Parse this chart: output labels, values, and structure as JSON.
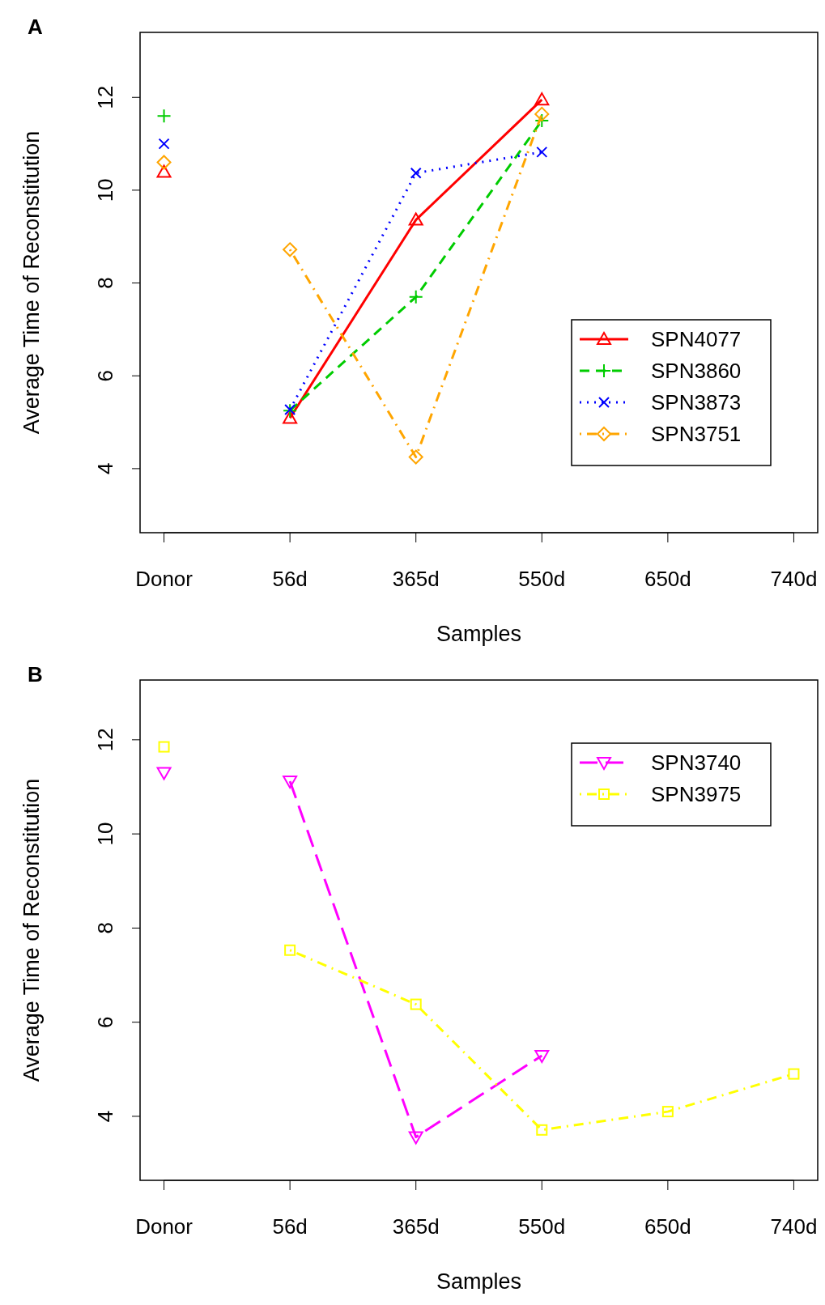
{
  "chart_data": [
    {
      "type": "line",
      "xlabel": "Samples",
      "ylabel": "Average Time of Reconstitution",
      "annotations": [
        "A"
      ],
      "categories": [
        "Donor",
        "56d",
        "365d",
        "550d",
        "650d",
        "740d"
      ],
      "ylim": [
        2.62,
        13.4
      ],
      "yticks": [
        4,
        6,
        8,
        10,
        12
      ],
      "grid": false,
      "legend": "right",
      "series": [
        {
          "name": "SPN4077",
          "color": "#ff0000",
          "marker": "triangle",
          "line_style": "solid",
          "values": [
            null,
            5.09,
            9.36,
            11.95,
            null,
            null
          ]
        },
        {
          "name": "SPN3860",
          "color": "#00cc00",
          "marker": "plus",
          "line_style": "dashed",
          "values": [
            null,
            5.25,
            7.7,
            11.5,
            null,
            null
          ]
        },
        {
          "name": "SPN3873",
          "color": "#0000ff",
          "marker": "x",
          "line_style": "dotted",
          "values": [
            null,
            5.27,
            10.37,
            10.82,
            null,
            null
          ]
        },
        {
          "name": "SPN3751",
          "color": "#ffa500",
          "marker": "diamond",
          "line_style": "dashdot",
          "values": [
            null,
            8.72,
            4.25,
            11.64,
            null,
            null
          ]
        },
        {
          "type": "scatter",
          "color": "#ff0000",
          "marker": "triangle",
          "values": [
            10.39,
            null,
            null,
            null,
            null,
            null
          ]
        },
        {
          "type": "scatter",
          "color": "#00cc00",
          "marker": "plus",
          "values": [
            11.6,
            null,
            null,
            null,
            null,
            null
          ]
        },
        {
          "type": "scatter",
          "color": "#0000ff",
          "marker": "x",
          "values": [
            11.0,
            null,
            null,
            null,
            null,
            null
          ]
        },
        {
          "type": "scatter",
          "color": "#ffa500",
          "marker": "diamond",
          "values": [
            10.6,
            null,
            null,
            null,
            null,
            null
          ]
        }
      ]
    },
    {
      "type": "line",
      "xlabel": "Samples",
      "ylabel": "Average Time of Reconstitution",
      "annotations": [
        "B"
      ],
      "categories": [
        "Donor",
        "56d",
        "365d",
        "550d",
        "650d",
        "740d"
      ],
      "ylim": [
        2.64,
        13.27
      ],
      "yticks": [
        4,
        6,
        8,
        10,
        12
      ],
      "grid": false,
      "legend": "top right",
      "series": [
        {
          "name": "SPN3740",
          "color": "#ff00ff",
          "marker": "triangle-down",
          "line_style": "longdash",
          "values": [
            null,
            11.12,
            3.56,
            5.29,
            null,
            null
          ]
        },
        {
          "name": "SPN3975",
          "color": "#ffff00",
          "marker": "square",
          "line_style": "dashdot",
          "values": [
            null,
            7.53,
            6.38,
            3.71,
            4.1,
            4.9
          ]
        },
        {
          "type": "scatter",
          "color": "#ff00ff",
          "marker": "triangle-down",
          "values": [
            11.3,
            null,
            null,
            null,
            null,
            null
          ]
        },
        {
          "type": "scatter",
          "color": "#ffff00",
          "marker": "square",
          "values": [
            11.85,
            null,
            null,
            null,
            null,
            null
          ]
        }
      ]
    }
  ]
}
